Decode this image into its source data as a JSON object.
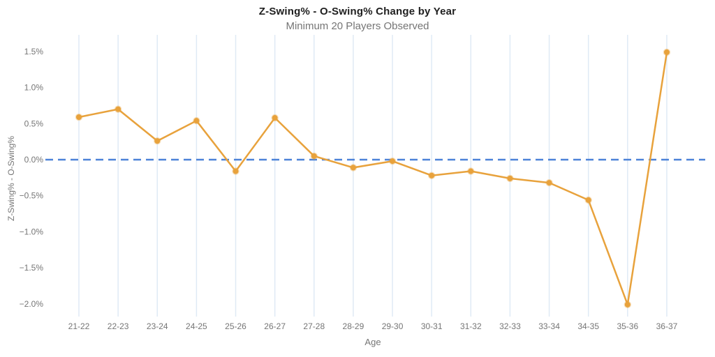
{
  "header": {
    "title": "Z-Swing% - O-Swing% Change by Year",
    "subtitle": "Minimum 20 Players Observed"
  },
  "chart_data": {
    "type": "line",
    "title": "Z-Swing% - O-Swing% Change by Year",
    "subtitle": "Minimum 20 Players Observed",
    "xlabel": "Age",
    "ylabel": "Z-Swing% - O-Swing%",
    "categories": [
      "21-22",
      "22-23",
      "23-24",
      "24-25",
      "25-26",
      "26-27",
      "27-28",
      "28-29",
      "29-30",
      "30-31",
      "31-32",
      "32-33",
      "33-34",
      "34-35",
      "35-36",
      "36-37"
    ],
    "values": [
      0.59,
      0.7,
      0.26,
      0.54,
      -0.16,
      0.58,
      0.05,
      -0.11,
      -0.02,
      -0.22,
      -0.16,
      -0.26,
      -0.32,
      -0.56,
      -2.01,
      1.49
    ],
    "value_unit": "%",
    "y_ticks": [
      1.5,
      1.0,
      0.5,
      0.0,
      -0.5,
      -1.0,
      -1.5,
      -2.0
    ],
    "y_tick_labels": [
      "1.5%",
      "1.0%",
      "0.5%",
      "0.0%",
      "−0.5%",
      "−1.0%",
      "−1.5%",
      "−2.0%"
    ],
    "ylim": [
      -2.2,
      1.75
    ],
    "grid": "vertical-only",
    "legend": "none",
    "reference_line": {
      "value": 0.0,
      "style": "dashed"
    },
    "colors": {
      "series_line": "#E8A23C",
      "series_marker": "#E8A23C",
      "reference_line": "#4C82D8",
      "gridline": "#DFEAF5",
      "tick_text": "#757575",
      "title_text": "#1F1F1F"
    }
  }
}
